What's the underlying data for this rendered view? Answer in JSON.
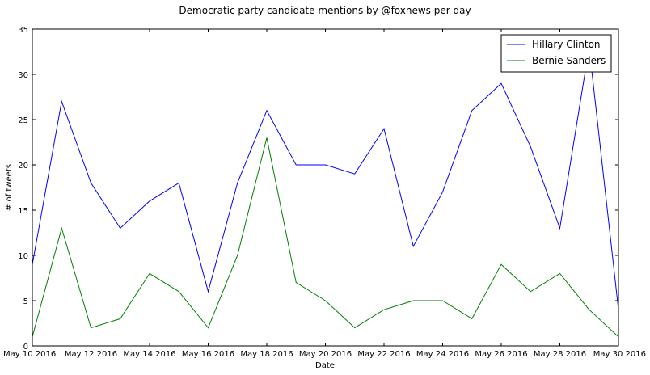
{
  "chart_data": {
    "type": "line",
    "title": "Democratic party candidate mentions by @foxnews per day",
    "xlabel": "Date",
    "ylabel": "# of tweets",
    "ylim": [
      0,
      35
    ],
    "yticks": [
      0,
      5,
      10,
      15,
      20,
      25,
      30,
      35
    ],
    "xlim": [
      "2016-05-10",
      "2016-05-30"
    ],
    "xtick_labels": [
      "May 10 2016",
      "May 12 2016",
      "May 14 2016",
      "May 16 2016",
      "May 18 2016",
      "May 20 2016",
      "May 22 2016",
      "May 24 2016",
      "May 26 2016",
      "May 28 2016",
      "May 30 2016"
    ],
    "x": [
      "2016-05-10",
      "2016-05-11",
      "2016-05-12",
      "2016-05-13",
      "2016-05-14",
      "2016-05-15",
      "2016-05-16",
      "2016-05-17",
      "2016-05-18",
      "2016-05-19",
      "2016-05-20",
      "2016-05-21",
      "2016-05-22",
      "2016-05-23",
      "2016-05-24",
      "2016-05-25",
      "2016-05-26",
      "2016-05-27",
      "2016-05-28",
      "2016-05-29",
      "2016-05-30"
    ],
    "series": [
      {
        "name": "Hillary Clinton",
        "color": "#0000ff",
        "values": [
          9,
          27,
          18,
          13,
          16,
          18,
          6,
          18,
          26,
          20,
          20,
          19,
          24,
          11,
          17,
          26,
          29,
          22,
          13,
          33,
          4
        ]
      },
      {
        "name": "Bernie Sanders",
        "color": "#008000",
        "values": [
          1,
          13,
          2,
          3,
          8,
          6,
          2,
          10,
          23,
          7,
          5,
          2,
          4,
          5,
          5,
          3,
          9,
          6,
          8,
          4,
          1
        ]
      }
    ],
    "grid": false,
    "legend_position": "top-right"
  }
}
